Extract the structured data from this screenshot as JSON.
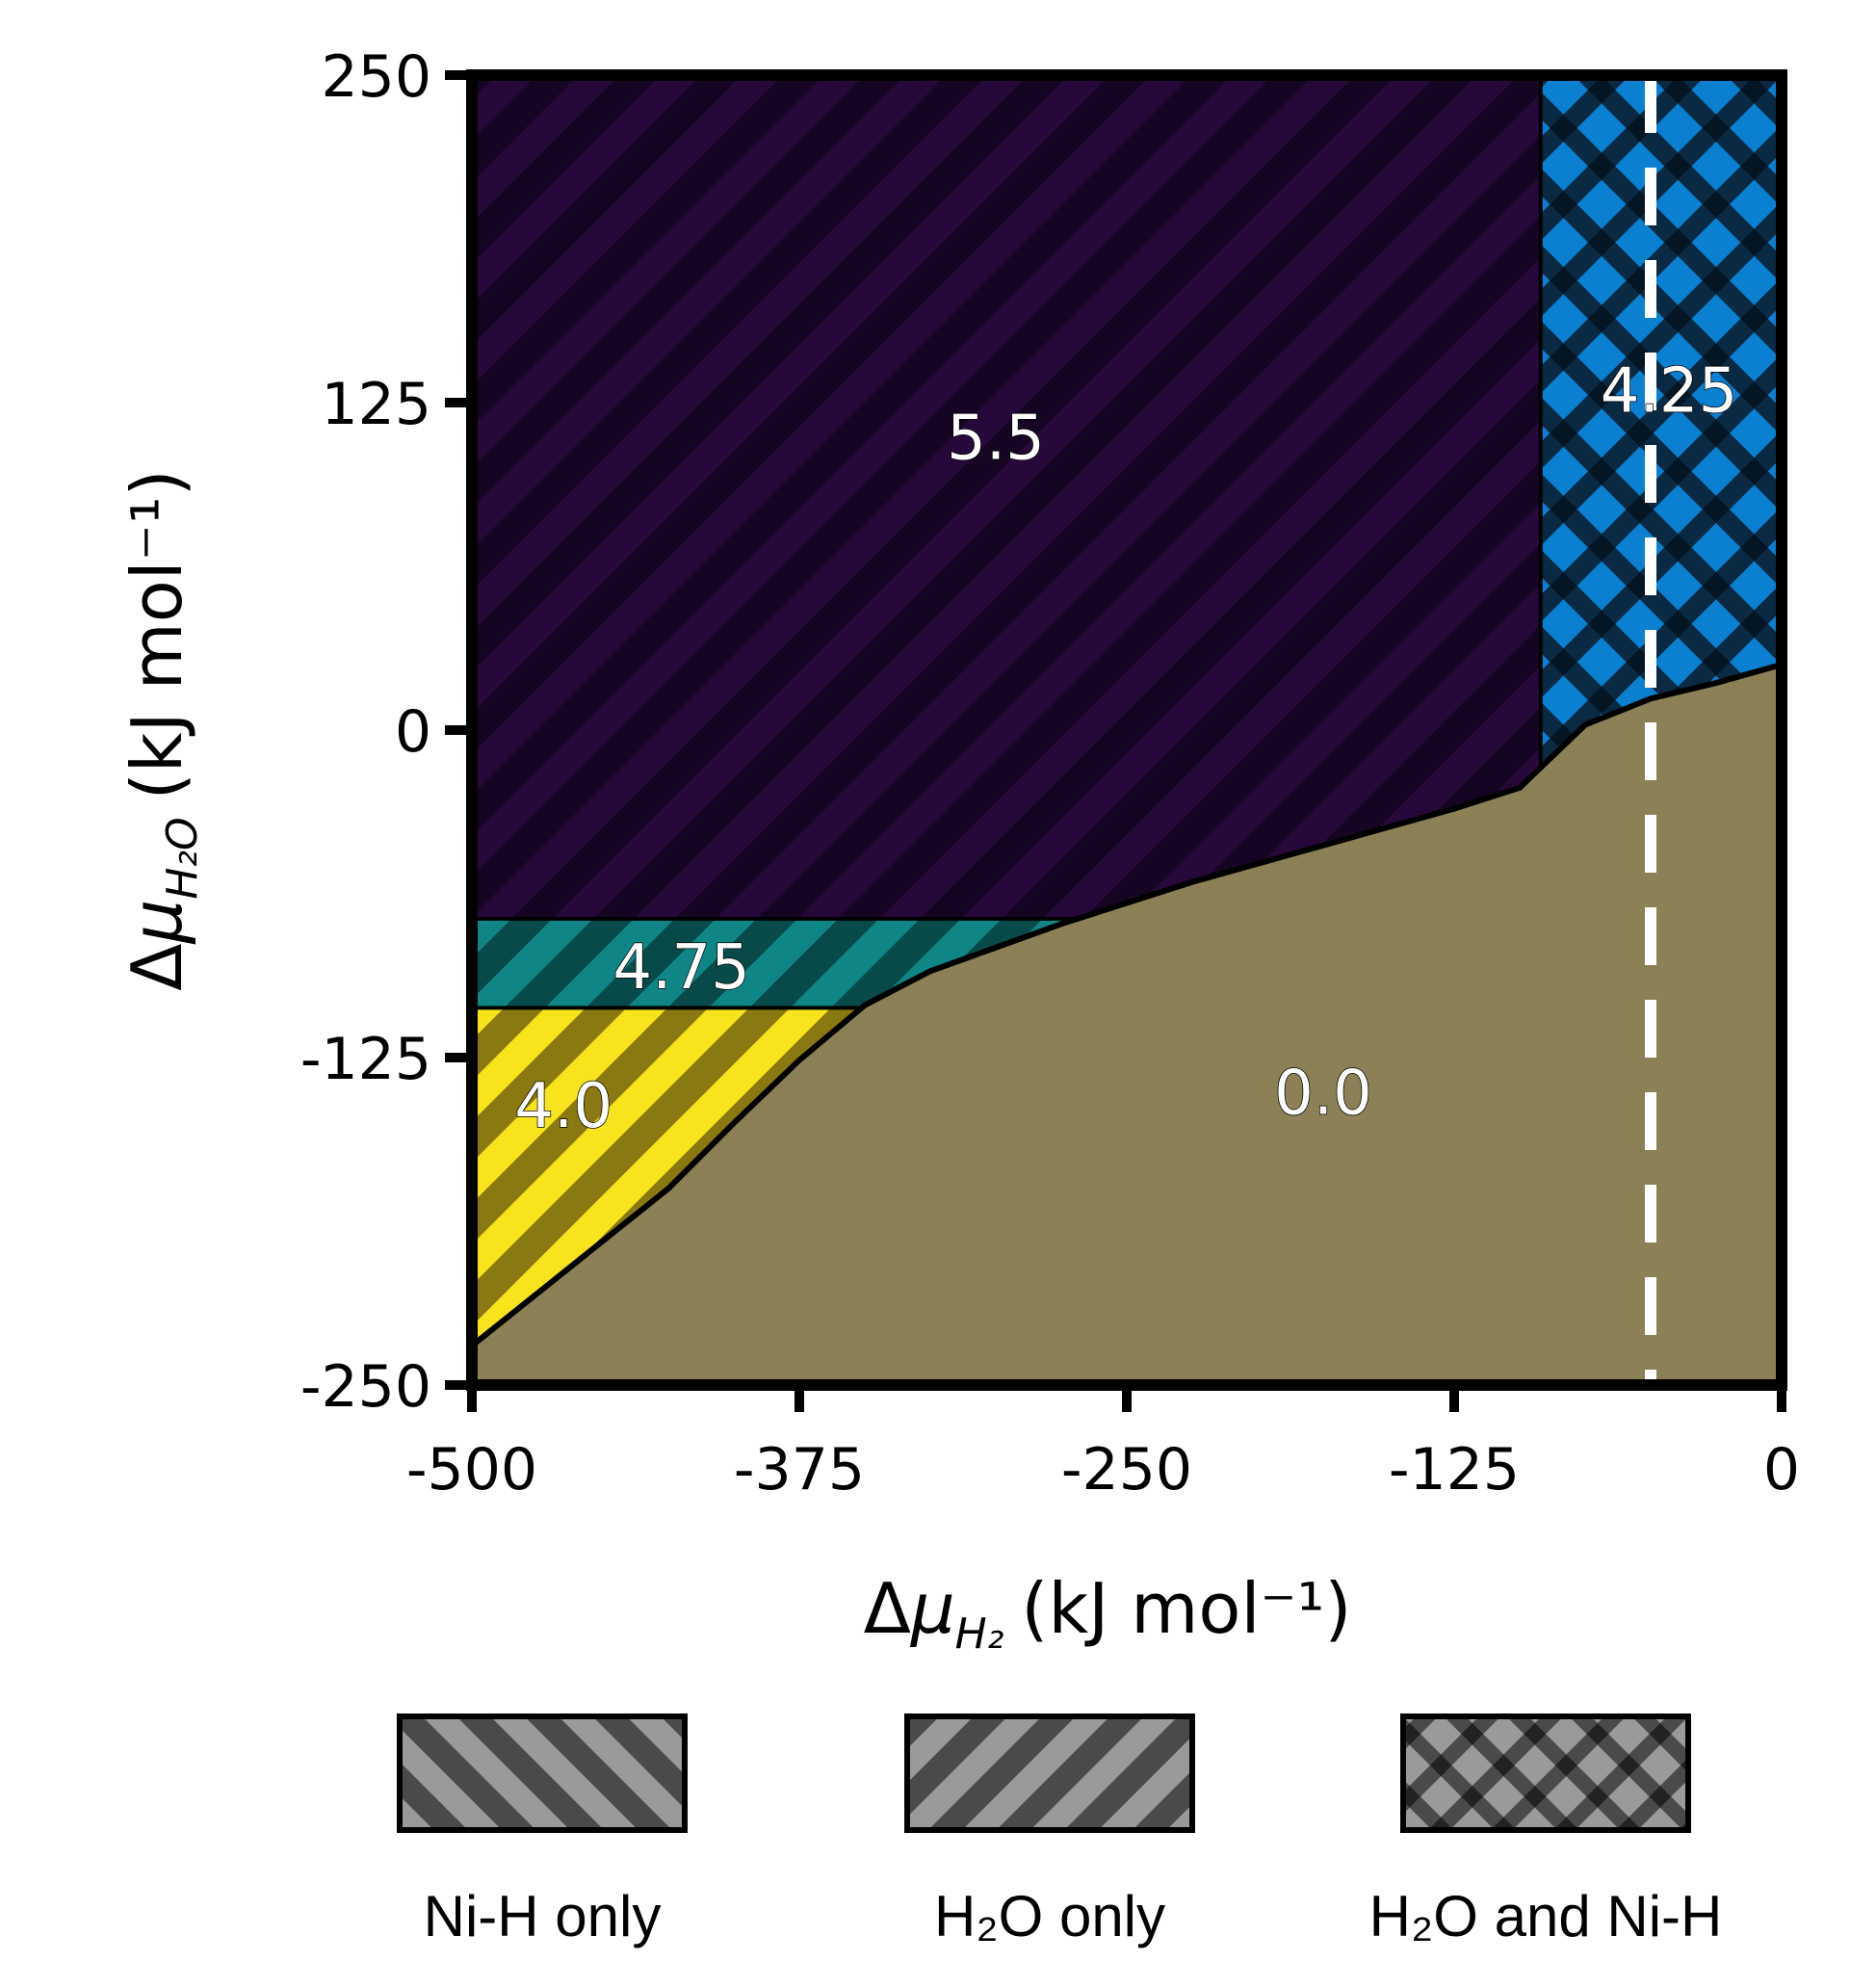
{
  "chart_data": {
    "type": "heatmap",
    "title": "",
    "xlabel_parts": {
      "delta": "Δ",
      "mu": "μ",
      "sub": "H₂",
      "units": "(kJ mol⁻¹)"
    },
    "ylabel_parts": {
      "delta": "Δ",
      "mu": "μ",
      "sub": "H₂O",
      "units": "(kJ mol⁻¹)"
    },
    "xlim": [
      -500,
      0
    ],
    "ylim": [
      -250,
      250
    ],
    "x_ticks": [
      -500,
      -375,
      -250,
      -125,
      0
    ],
    "y_ticks": [
      -250,
      -125,
      0,
      125,
      250
    ],
    "x_tick_labels": [
      "-500",
      "-375",
      "-250",
      "-125",
      "0"
    ],
    "y_tick_labels": [
      "-250",
      "-125",
      "0",
      "125",
      "250"
    ],
    "boundary_curve": {
      "x": [
        -500,
        -475,
        -450,
        -425,
        -400,
        -375,
        -350,
        -325,
        -300,
        -275,
        -250,
        -225,
        -200,
        -175,
        -150,
        -125,
        -100,
        -75,
        -50,
        -25,
        0
      ],
      "y": [
        -235,
        -215,
        -195,
        -175,
        -150,
        -126,
        -105,
        -92,
        -83,
        -74,
        -66,
        -58,
        -51,
        -44,
        -37,
        -30,
        -22,
        2,
        12,
        18,
        25
      ]
    },
    "regions": [
      {
        "label": "5.5",
        "pattern": "ni-h",
        "color": "#21082e",
        "label_x": -300,
        "label_y": 110
      },
      {
        "label": "4.25",
        "pattern": "both",
        "color": "#0a80d0",
        "label_x": -43,
        "label_y": 128
      },
      {
        "label": "4.75",
        "pattern": "h2o",
        "color": "#0d7b7b",
        "label_x": -420,
        "label_y": -92
      },
      {
        "label": "4.0",
        "pattern": "h2o",
        "color": "#f5e21a",
        "label_x": -465,
        "label_y": -145
      },
      {
        "label": "0.0",
        "pattern": "none",
        "color": "#8c8156",
        "label_x": -175,
        "label_y": -140
      }
    ],
    "region_bounds": {
      "x_4_25_left": -92,
      "y_4_75_top": -72,
      "y_4_0_top": -106
    },
    "dashed_line": {
      "x": -50,
      "color": "#ffffff"
    },
    "legend": [
      {
        "label": "Ni-H only",
        "pattern": "ni-h"
      },
      {
        "label": "H₂O only",
        "pattern": "h2o"
      },
      {
        "label": "H₂O and Ni-H",
        "pattern": "both"
      }
    ]
  }
}
